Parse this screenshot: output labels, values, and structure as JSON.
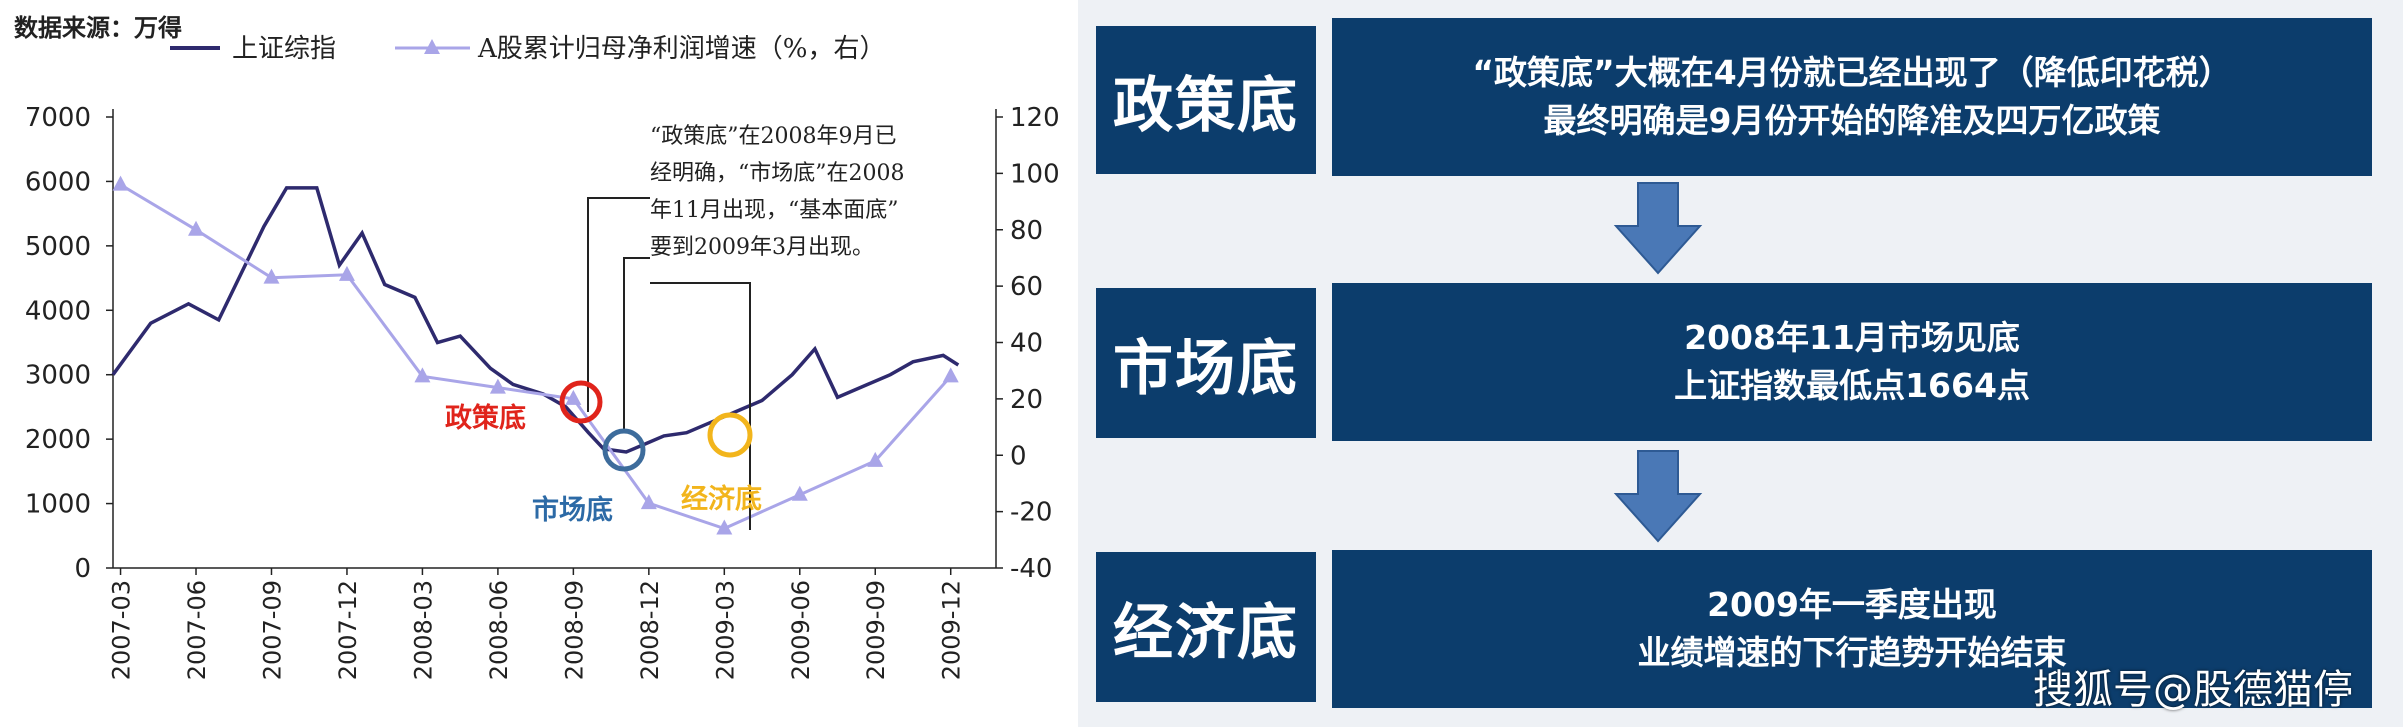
{
  "left_panel": {
    "source_label": "数据来源：万得",
    "legend": {
      "line1_label": "上证综指",
      "line2_label": "A股累计归母净利润增速（%，右）"
    },
    "annotation_lines": [
      "“政策底”在2008年9月已",
      "经明确，“市场底”在2008",
      "年11月出现，“基本面底”",
      "要到2009年3月出现。"
    ],
    "markers": {
      "policy": "政策底",
      "market": "市场底",
      "economy": "经济底"
    }
  },
  "chart_data": {
    "type": "line",
    "left_axis": {
      "ticks": [
        "0",
        "1000",
        "2000",
        "3000",
        "4000",
        "5000",
        "6000",
        "7000"
      ],
      "ylim": [
        0,
        7000
      ]
    },
    "right_axis": {
      "ticks": [
        "-40",
        "-20",
        "0",
        "20",
        "40",
        "60",
        "80",
        "100",
        "120"
      ],
      "ylim": [
        -40,
        120
      ]
    },
    "x_ticks": [
      "2007-03",
      "2007-06",
      "2007-09",
      "2007-12",
      "2008-03",
      "2008-06",
      "2008-09",
      "2008-12",
      "2009-03",
      "2009-06",
      "2009-09",
      "2009-12"
    ],
    "series": [
      {
        "name": "上证综指",
        "axis": "left",
        "color": "#2e2a6e",
        "x": [
          0,
          0.5,
          1,
          1.4,
          2,
          2.3,
          2.7,
          3,
          3.3,
          3.6,
          4,
          4.3,
          4.6,
          5,
          5.3,
          5.7,
          6,
          6.3,
          6.5,
          6.8,
          7,
          7.3,
          7.6,
          8,
          8.3,
          8.6,
          9,
          9.3,
          9.6,
          10,
          10.3,
          10.6,
          11,
          11.2
        ],
        "values": [
          3000,
          3800,
          4100,
          3850,
          5300,
          5900,
          5900,
          4700,
          5200,
          4400,
          4200,
          3500,
          3600,
          3100,
          2850,
          2700,
          2500,
          2100,
          1850,
          1800,
          1900,
          2050,
          2100,
          2300,
          2450,
          2600,
          3000,
          3400,
          2650,
          2850,
          3000,
          3200,
          3300,
          3150
        ]
      },
      {
        "name": "A股累计归母净利润增速（%，右）",
        "axis": "right",
        "color": "#a9a5e8",
        "x": [
          0.1,
          1.1,
          2.1,
          3.1,
          4.1,
          5.1,
          6.1,
          7.1,
          8.1,
          9.1,
          10.1,
          11.1
        ],
        "values": [
          96,
          80,
          63,
          64,
          28,
          24,
          20,
          -17,
          -26,
          -14,
          -2,
          28
        ]
      }
    ]
  },
  "right_panel": {
    "steps": [
      {
        "label": "政策底",
        "lines": [
          "“政策底”大概在4月份就已经出现了（降低印花税）",
          "最终明确是9月份开始的降准及四万亿政策"
        ]
      },
      {
        "label": "市场底",
        "lines": [
          "2008年11月市场见底",
          "上证指数最低点1664点"
        ]
      },
      {
        "label": "经济底",
        "lines": [
          "2009年一季度出现",
          "业绩增速的下行趋势开始结束"
        ]
      }
    ],
    "watermark": "搜狐号@股德猫停"
  }
}
